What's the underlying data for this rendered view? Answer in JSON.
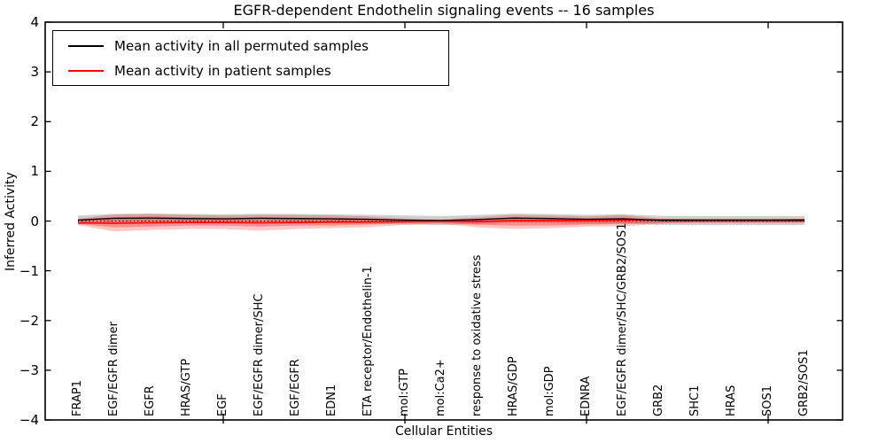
{
  "legend": {
    "items": [
      {
        "label": "Mean activity in all permuted samples",
        "color": "#000000"
      },
      {
        "label": "Mean activity in patient samples",
        "color": "#ff0000"
      }
    ]
  },
  "chart_data": {
    "type": "line",
    "title": "EGFR-dependent Endothelin signaling events -- 16 samples",
    "xlabel": "Cellular Entities",
    "ylabel": "Inferred Activity",
    "ylim": [
      -4,
      4
    ],
    "ytick_labels": [
      "4",
      "3",
      "2",
      "1",
      "0",
      "−1",
      "−2",
      "−3",
      "−4"
    ],
    "ytick_values": [
      4,
      3,
      2,
      1,
      0,
      -1,
      -2,
      -3,
      -4
    ],
    "x_major_tick_indices": [
      4,
      9,
      14,
      19
    ],
    "grid": false,
    "legend_position": "upper left",
    "categories": [
      "FRAP1",
      "EGF/EGFR dimer",
      "EGFR",
      "HRAS/GTP",
      "EGF",
      "EGF/EGFR dimer/SHC",
      "EGF/EGFR",
      "EDN1",
      "ETA receptor/Endothelin-1",
      "mol:GTP",
      "mol:Ca2+",
      "response to oxidative stress",
      "HRAS/GDP",
      "mol:GDP",
      "EDNRA",
      "EGF/EGFR dimer/SHC/GRB2/SOS1",
      "GRB2",
      "SHC1",
      "HRAS",
      "SOS1",
      "GRB2/SOS1"
    ],
    "series": [
      {
        "name": "Mean activity in all permuted samples",
        "color": "#000000",
        "style": "solid",
        "width": 1.3,
        "values": [
          0.02,
          0.055,
          0.06,
          0.05,
          0.045,
          0.055,
          0.05,
          0.045,
          0.035,
          0.02,
          0.01,
          0.03,
          0.06,
          0.05,
          0.035,
          0.045,
          0.015,
          0.01,
          0.01,
          0.01,
          0.01
        ]
      },
      {
        "name": "Mean activity in patient samples",
        "color": "#ff0000",
        "style": "solid",
        "width": 1.6,
        "values": [
          -0.035,
          -0.045,
          -0.035,
          -0.03,
          -0.03,
          -0.035,
          -0.03,
          -0.02,
          -0.02,
          -0.01,
          0.0,
          -0.01,
          0.01,
          0.01,
          0.01,
          0.02,
          0.025,
          0.025,
          0.025,
          0.025,
          0.03
        ]
      },
      {
        "name": "zero reference",
        "color": "#000000",
        "style": "dotted",
        "width": 1.2,
        "values": [
          0,
          0,
          0,
          0,
          0,
          0,
          0,
          0,
          0,
          0,
          0,
          0,
          0,
          0,
          0,
          0,
          0,
          0,
          0,
          0,
          0
        ]
      }
    ],
    "bands": [
      {
        "name": "permuted std band",
        "color": "#bfbfbf",
        "opacity": 0.75,
        "upper": [
          0.11,
          0.145,
          0.15,
          0.14,
          0.135,
          0.145,
          0.14,
          0.135,
          0.125,
          0.11,
          0.1,
          0.12,
          0.15,
          0.14,
          0.125,
          0.135,
          0.105,
          0.1,
          0.1,
          0.1,
          0.1
        ],
        "lower": [
          -0.07,
          -0.035,
          -0.03,
          -0.04,
          -0.045,
          -0.035,
          -0.04,
          -0.045,
          -0.055,
          -0.07,
          -0.08,
          -0.06,
          -0.03,
          -0.04,
          -0.055,
          -0.045,
          -0.075,
          -0.08,
          -0.08,
          -0.08,
          -0.08
        ]
      },
      {
        "name": "patient std outer band",
        "color": "#ff0000",
        "opacity": 0.22,
        "upper": [
          0.05,
          0.13,
          0.145,
          0.125,
          0.11,
          0.125,
          0.125,
          0.11,
          0.09,
          0.05,
          0.035,
          0.075,
          0.125,
          0.11,
          0.09,
          0.125,
          0.05,
          0.035,
          0.035,
          0.035,
          0.035
        ],
        "lower": [
          -0.08,
          -0.21,
          -0.18,
          -0.16,
          -0.16,
          -0.19,
          -0.16,
          -0.14,
          -0.125,
          -0.075,
          -0.055,
          -0.125,
          -0.16,
          -0.145,
          -0.11,
          -0.105,
          -0.055,
          -0.04,
          -0.04,
          -0.04,
          -0.04
        ]
      },
      {
        "name": "patient std inner band",
        "color": "#ff0000",
        "opacity": 0.28,
        "upper": [
          0.035,
          0.075,
          0.09,
          0.075,
          0.07,
          0.075,
          0.07,
          0.06,
          0.05,
          0.03,
          0.02,
          0.04,
          0.075,
          0.07,
          0.055,
          0.075,
          0.03,
          0.02,
          0.02,
          0.02,
          0.02
        ],
        "lower": [
          -0.055,
          -0.13,
          -0.11,
          -0.09,
          -0.09,
          -0.11,
          -0.09,
          -0.09,
          -0.07,
          -0.04,
          -0.035,
          -0.075,
          -0.09,
          -0.09,
          -0.07,
          -0.06,
          -0.035,
          -0.025,
          -0.025,
          -0.025,
          -0.025
        ]
      }
    ]
  }
}
